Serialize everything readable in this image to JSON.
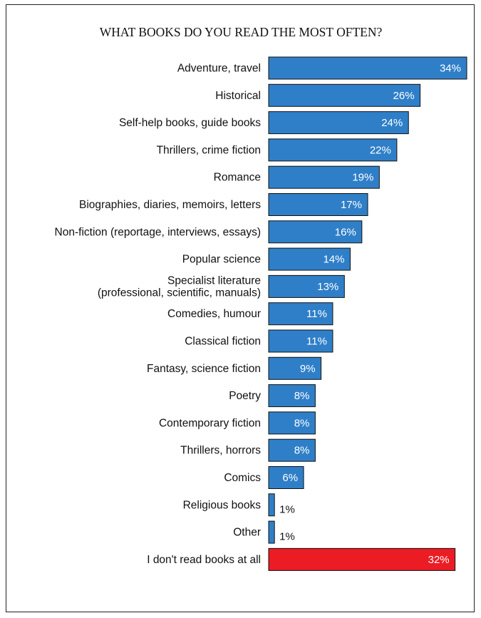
{
  "chart_data": {
    "type": "bar",
    "orientation": "horizontal",
    "title": "WHAT BOOKS DO YOU READ THE MOST OFTEN?",
    "categories": [
      "Adventure, travel",
      "Historical",
      "Self-help books, guide books",
      "Thrillers, crime fiction",
      "Romance",
      "Biographies, diaries, memoirs, letters",
      "Non-fiction (reportage, interviews, essays)",
      "Popular science",
      "Specialist literature\n(professional, scientific, manuals)",
      "Comedies, humour",
      "Classical fiction",
      "Fantasy, science fiction",
      "Poetry",
      "Contemporary fiction",
      "Thrillers, horrors",
      "Comics",
      "Religious books",
      "Other",
      "I don't read books at all"
    ],
    "values": [
      34,
      26,
      24,
      22,
      19,
      17,
      16,
      14,
      13,
      11,
      11,
      9,
      8,
      8,
      8,
      6,
      1,
      1,
      32
    ],
    "value_labels": [
      "34%",
      "26%",
      "24%",
      "22%",
      "19%",
      "17%",
      "16%",
      "14%",
      "13%",
      "11%",
      "11%",
      "9%",
      "8%",
      "8%",
      "8%",
      "6%",
      "1%",
      "1%",
      "32%"
    ],
    "unit": "%",
    "xlim": [
      0,
      34
    ],
    "grid": false,
    "colors": {
      "bar": "#2f7fc8",
      "highlight": "#ec1c24",
      "stroke": "#111111"
    },
    "highlight_index": 18
  }
}
